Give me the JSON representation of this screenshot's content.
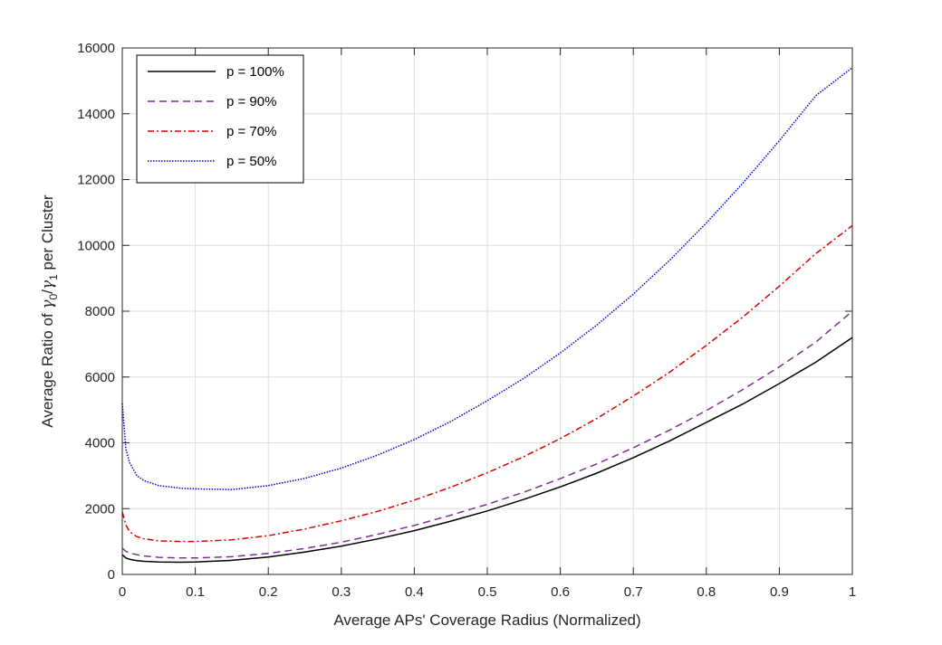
{
  "chart_data": {
    "type": "line",
    "title": "",
    "xlabel": "Average APs' Coverage Radius (Normalized)",
    "ylabel_parts": [
      "Average Ratio of ",
      "γ",
      "0",
      "/",
      "γ",
      "1",
      " per Cluster"
    ],
    "xlim": [
      0,
      1
    ],
    "ylim": [
      0,
      16000
    ],
    "grid": true,
    "legend_position": "top-left",
    "x_ticks": [
      "0",
      "0.1",
      "0.2",
      "0.3",
      "0.4",
      "0.5",
      "0.6",
      "0.7",
      "0.8",
      "0.9",
      "1"
    ],
    "y_ticks": [
      "0",
      "2000",
      "4000",
      "6000",
      "8000",
      "10000",
      "12000",
      "14000",
      "16000"
    ],
    "x": [
      0,
      0.005,
      0.01,
      0.02,
      0.03,
      0.05,
      0.08,
      0.1,
      0.15,
      0.2,
      0.25,
      0.3,
      0.35,
      0.4,
      0.45,
      0.5,
      0.55,
      0.6,
      0.65,
      0.7,
      0.75,
      0.8,
      0.85,
      0.9,
      0.95,
      1.0
    ],
    "series": [
      {
        "name": "p = 100%",
        "color": "#000000",
        "dash": "solid",
        "values": [
          600,
          500,
          460,
          420,
          400,
          380,
          370,
          380,
          430,
          530,
          680,
          860,
          1080,
          1330,
          1620,
          1930,
          2280,
          2660,
          3080,
          3550,
          4060,
          4620,
          5180,
          5800,
          6450,
          7200
        ]
      },
      {
        "name": "p = 90%",
        "color": "#7e2f8e",
        "dash": "dashed",
        "values": [
          800,
          700,
          650,
          600,
          560,
          520,
          500,
          500,
          540,
          640,
          790,
          980,
          1220,
          1490,
          1800,
          2130,
          2500,
          2910,
          3360,
          3850,
          4390,
          4980,
          5620,
          6310,
          7060,
          8000
        ]
      },
      {
        "name": "p = 70%",
        "color": "#dd0000",
        "dash": "dashdot",
        "values": [
          1900,
          1500,
          1300,
          1150,
          1080,
          1020,
          1000,
          1000,
          1050,
          1180,
          1380,
          1630,
          1920,
          2260,
          2650,
          3090,
          3580,
          4130,
          4740,
          5420,
          6150,
          6960,
          7820,
          8760,
          9750,
          10600
        ]
      },
      {
        "name": "p = 50%",
        "color": "#0000cc",
        "dash": "dotted",
        "values": [
          5200,
          3800,
          3400,
          3000,
          2850,
          2700,
          2620,
          2600,
          2580,
          2700,
          2920,
          3230,
          3630,
          4100,
          4650,
          5280,
          5960,
          6730,
          7580,
          8520,
          9550,
          10680,
          11890,
          13180,
          14550,
          15400
        ]
      }
    ]
  }
}
